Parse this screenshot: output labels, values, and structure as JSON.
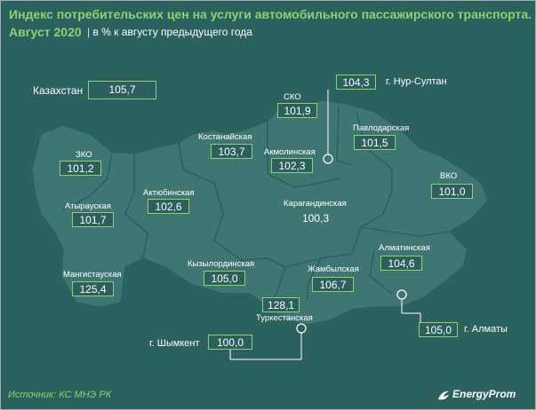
{
  "title_line1": "Индекс потребительских цен на услуги автомобильного пассажирского транспорта.",
  "title_line2": "Август 2020",
  "subtitle": "в % к августу предыдущего года",
  "separator": "|",
  "country": {
    "label": "Казахстан",
    "value": "105,7"
  },
  "regions": {
    "sko": {
      "label": "СКО",
      "value": "101,9"
    },
    "kostanay": {
      "label": "Костанайская",
      "value": "103,7"
    },
    "akmola": {
      "label": "Акмолинская",
      "value": "102,3"
    },
    "pavlodar": {
      "label": "Павлодарская",
      "value": "101,5"
    },
    "zko": {
      "label": "ЗКО",
      "value": "101,2"
    },
    "vko": {
      "label": "ВКО",
      "value": "101,0"
    },
    "atyrau": {
      "label": "Атырауская",
      "value": "101,7"
    },
    "aktobe": {
      "label": "Актюбинская",
      "value": "102,6"
    },
    "karaganda": {
      "label": "Карагандинская",
      "value": "100,3"
    },
    "almaty_reg": {
      "label": "Алматинская",
      "value": "104,6"
    },
    "mangystau": {
      "label": "Мангистауская",
      "value": "125,4"
    },
    "kyzylorda": {
      "label": "Кызылординская",
      "value": "105,0"
    },
    "zhambyl": {
      "label": "Жамбылская",
      "value": "106,7"
    },
    "turkestan": {
      "label": "Туркестанская",
      "value": "128,1"
    }
  },
  "cities": {
    "nursultan": {
      "label": "г. Нур-Султан",
      "value": "104,3"
    },
    "almaty": {
      "label": "г. Алматы",
      "value": "105,0"
    },
    "shymkent": {
      "label": "г. Шымкент",
      "value": "100,0"
    }
  },
  "source": "Источник: КС МНЭ РК",
  "brand": "EnergyProm",
  "colors": {
    "background": "#2b615f",
    "region_fill": "#3f7673",
    "accent": "#8fd16a",
    "text": "#ffffff"
  }
}
